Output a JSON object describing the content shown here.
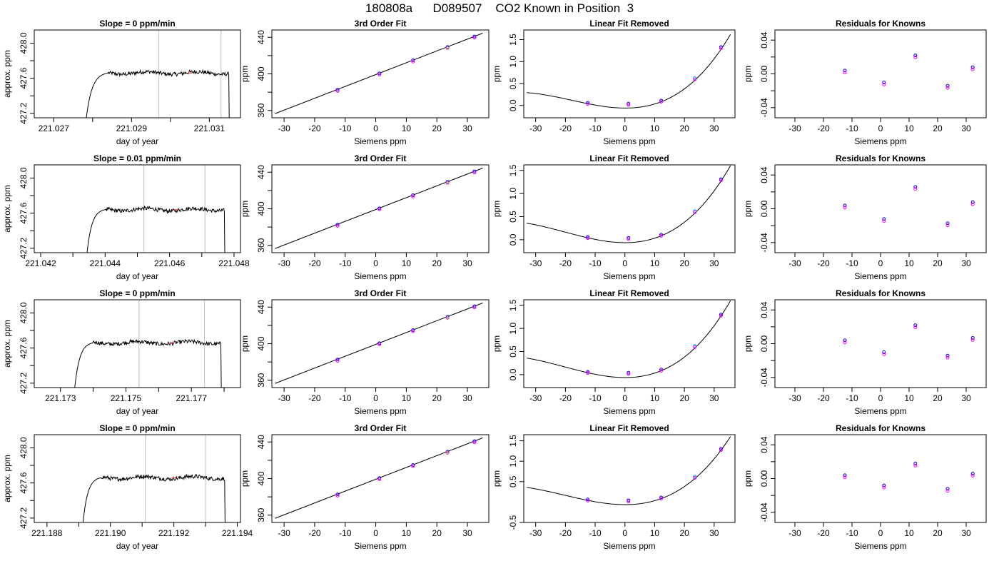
{
  "figure": {
    "title": "180808a      D089507    CO2 Known in Position  3"
  },
  "colors": {
    "axis": "#000000",
    "line": "#000000",
    "marker_a": "#0000ff",
    "marker_b": "#ff00ff",
    "marker_c": "#00aaff",
    "vline": "#c8c8c8",
    "warm_point": "#ff6666"
  },
  "chart_data": [
    {
      "type": "line",
      "title": "Slope =  0  ppm/min",
      "xlabel": "day of year",
      "ylabel": "approx. ppm",
      "xlim": [
        221.0265,
        221.0318
      ],
      "ylim": [
        427.15,
        428.15
      ],
      "xticks": [
        221.027,
        221.028,
        221.029,
        221.03,
        221.031
      ],
      "xtick_labels": [
        "221.027",
        "",
        "221.029",
        "",
        "221.031"
      ],
      "yticks": [
        427.2,
        427.4,
        427.6,
        427.8,
        428.0
      ],
      "ytick_labels": [
        "427.2",
        "",
        "427.6",
        "",
        "428.0"
      ],
      "vlines": [
        221.0297,
        221.0313
      ],
      "trace": {
        "start": 221.0278,
        "rise_end": 221.0284,
        "end": 221.0315,
        "base": 427.0,
        "plateau": 427.66
      },
      "highlight_x": 221.0305
    },
    {
      "type": "scatter",
      "title": "3rd Order Fit",
      "xlabel": "Siemens ppm",
      "ylabel": "ppm",
      "xlim": [
        -34,
        37
      ],
      "ylim": [
        352,
        448
      ],
      "xticks": [
        -30,
        -20,
        -10,
        0,
        10,
        20,
        30
      ],
      "xtick_labels": [
        "-30",
        "-20",
        "-10",
        "0",
        "10",
        "20",
        "30"
      ],
      "yticks": [
        360,
        380,
        400,
        420,
        440
      ],
      "ytick_labels": [
        "360",
        "",
        "400",
        "",
        "440"
      ],
      "line": {
        "x": [
          -33,
          35
        ],
        "y": [
          356.5,
          444.5
        ]
      },
      "points": {
        "x": [
          -12.5,
          1.2,
          12.2,
          23.5,
          32.3
        ],
        "y": [
          381.6,
          399.5,
          413.8,
          428.4,
          439.9
        ]
      }
    },
    {
      "type": "scatter",
      "title": "Linear Fit Removed",
      "xlabel": "Siemens ppm",
      "ylabel": "ppm",
      "xlim": [
        -34,
        37
      ],
      "ylim": [
        -0.28,
        1.72
      ],
      "xticks": [
        -30,
        -20,
        -10,
        0,
        10,
        20,
        30
      ],
      "xtick_labels": [
        "-30",
        "-20",
        "-10",
        "0",
        "10",
        "20",
        "30"
      ],
      "yticks": [
        0,
        0.5,
        1.0,
        1.5
      ],
      "ytick_labels": [
        "0.0",
        "0.5",
        "1.0",
        "1.5"
      ],
      "curve_ref": [
        -12.5,
        0.042,
        12.2,
        0.085,
        23.5,
        0.575,
        32.3,
        1.28
      ],
      "points": {
        "x": [
          -12.5,
          1.2,
          12.2,
          23.5,
          32.3
        ],
        "y": [
          0.04,
          0.02,
          0.09,
          0.6,
          1.31
        ]
      }
    },
    {
      "type": "scatter",
      "title": "Residuals for Knowns",
      "xlabel": "Siemens ppm",
      "ylabel": "ppm",
      "xlim": [
        -37,
        37
      ],
      "ylim": [
        -0.052,
        0.052
      ],
      "xticks": [
        -30,
        -20,
        -10,
        0,
        10,
        20,
        30
      ],
      "xtick_labels": [
        "-30",
        "-20",
        "-10",
        "0",
        "10",
        "20",
        "30"
      ],
      "yticks": [
        -0.04,
        -0.02,
        0,
        0.02,
        0.04
      ],
      "ytick_labels": [
        "-0.04",
        "",
        "0.00",
        "",
        "0.04"
      ],
      "points": {
        "x": [
          -12.5,
          1.2,
          12.2,
          23.5,
          32.3
        ],
        "y": [
          0.002,
          -0.012,
          0.02,
          -0.016,
          0.006
        ]
      }
    },
    {
      "type": "line",
      "title": "Slope =  0.01  ppm/min",
      "xlabel": "day of year",
      "ylabel": "approx. ppm",
      "xlim": [
        221.0418,
        221.0482
      ],
      "ylim": [
        427.15,
        428.15
      ],
      "xticks": [
        221.042,
        221.043,
        221.044,
        221.045,
        221.046,
        221.047,
        221.048
      ],
      "xtick_labels": [
        "221.042",
        "",
        "221.044",
        "",
        "221.046",
        "",
        "221.048"
      ],
      "yticks": [
        427.2,
        427.4,
        427.6,
        427.8,
        428.0
      ],
      "ytick_labels": [
        "427.2",
        "",
        "427.6",
        "",
        "428.0"
      ],
      "vlines": [
        221.0452,
        221.0471
      ],
      "trace": {
        "start": 221.0434,
        "rise_end": 221.044,
        "end": 221.0477,
        "base": 427.0,
        "plateau": 427.64
      },
      "highlight_x": 221.0462
    },
    {
      "type": "scatter",
      "title": "3rd Order Fit",
      "xlabel": "Siemens ppm",
      "ylabel": "ppm",
      "xlim": [
        -34,
        37
      ],
      "ylim": [
        352,
        448
      ],
      "xticks": [
        -30,
        -20,
        -10,
        0,
        10,
        20,
        30
      ],
      "xtick_labels": [
        "-30",
        "-20",
        "-10",
        "0",
        "10",
        "20",
        "30"
      ],
      "yticks": [
        360,
        380,
        400,
        420,
        440
      ],
      "ytick_labels": [
        "360",
        "",
        "400",
        "",
        "440"
      ],
      "line": {
        "x": [
          -33,
          35
        ],
        "y": [
          356.5,
          444.5
        ]
      },
      "points": {
        "x": [
          -12.5,
          1.2,
          12.2,
          23.5,
          32.3
        ],
        "y": [
          381.6,
          399.5,
          413.8,
          428.4,
          439.9
        ]
      }
    },
    {
      "type": "scatter",
      "title": "Linear Fit Removed",
      "xlabel": "Siemens ppm",
      "ylabel": "ppm",
      "xlim": [
        -34,
        37
      ],
      "ylim": [
        -0.28,
        1.62
      ],
      "xticks": [
        -30,
        -20,
        -10,
        0,
        10,
        20,
        30
      ],
      "xtick_labels": [
        "-30",
        "-20",
        "-10",
        "0",
        "10",
        "20",
        "30"
      ],
      "yticks": [
        0,
        0.5,
        1.0,
        1.5
      ],
      "ytick_labels": [
        "0.0",
        "0.5",
        "1.0",
        "1.5"
      ],
      "curve_ref": [
        -12.5,
        0.042,
        12.2,
        0.085,
        23.5,
        0.575,
        32.3,
        1.27
      ],
      "points": {
        "x": [
          -12.5,
          1.2,
          12.2,
          23.5,
          32.3
        ],
        "y": [
          0.04,
          0.02,
          0.09,
          0.6,
          1.29
        ]
      }
    },
    {
      "type": "scatter",
      "title": "Residuals for Knowns",
      "xlabel": "Siemens ppm",
      "ylabel": "ppm",
      "xlim": [
        -37,
        37
      ],
      "ylim": [
        -0.052,
        0.052
      ],
      "xticks": [
        -30,
        -20,
        -10,
        0,
        10,
        20,
        30
      ],
      "xtick_labels": [
        "-30",
        "-20",
        "-10",
        "0",
        "10",
        "20",
        "30"
      ],
      "yticks": [
        -0.04,
        -0.02,
        0,
        0.02,
        0.04
      ],
      "ytick_labels": [
        "-0.04",
        "",
        "0.00",
        "",
        "0.04"
      ],
      "points": {
        "x": [
          -12.5,
          1.2,
          12.2,
          23.5,
          32.3
        ],
        "y": [
          0.002,
          -0.014,
          0.024,
          -0.019,
          0.006
        ]
      }
    },
    {
      "type": "line",
      "title": "Slope =  0  ppm/min",
      "xlabel": "day of year",
      "ylabel": "approx. ppm",
      "xlim": [
        221.1722,
        221.1785
      ],
      "ylim": [
        427.15,
        428.15
      ],
      "xticks": [
        221.173,
        221.174,
        221.175,
        221.176,
        221.177,
        221.178
      ],
      "xtick_labels": [
        "221.173",
        "",
        "221.175",
        "",
        "221.177",
        ""
      ],
      "yticks": [
        427.2,
        427.4,
        427.6,
        427.8,
        428.0
      ],
      "ytick_labels": [
        "427.2",
        "",
        "427.6",
        "",
        "428.0"
      ],
      "vlines": [
        221.1754,
        221.1774
      ],
      "trace": {
        "start": 221.1734,
        "rise_end": 221.174,
        "end": 221.1779,
        "base": 427.0,
        "plateau": 427.66
      },
      "highlight_x": 221.1764
    },
    {
      "type": "scatter",
      "title": "3rd Order Fit",
      "xlabel": "Siemens ppm",
      "ylabel": "ppm",
      "xlim": [
        -34,
        37
      ],
      "ylim": [
        352,
        448
      ],
      "xticks": [
        -30,
        -20,
        -10,
        0,
        10,
        20,
        30
      ],
      "xtick_labels": [
        "-30",
        "-20",
        "-10",
        "0",
        "10",
        "20",
        "30"
      ],
      "yticks": [
        360,
        380,
        400,
        420,
        440
      ],
      "ytick_labels": [
        "360",
        "",
        "400",
        "",
        "440"
      ],
      "line": {
        "x": [
          -33,
          35
        ],
        "y": [
          356.5,
          444.5
        ]
      },
      "points": {
        "x": [
          -12.5,
          1.2,
          12.2,
          23.5,
          32.3
        ],
        "y": [
          381.6,
          399.5,
          413.8,
          428.4,
          439.9
        ]
      }
    },
    {
      "type": "scatter",
      "title": "Linear Fit Removed",
      "xlabel": "Siemens ppm",
      "ylabel": "ppm",
      "xlim": [
        -34,
        37
      ],
      "ylim": [
        -0.28,
        1.62
      ],
      "xticks": [
        -30,
        -20,
        -10,
        0,
        10,
        20,
        30
      ],
      "xtick_labels": [
        "-30",
        "-20",
        "-10",
        "0",
        "10",
        "20",
        "30"
      ],
      "yticks": [
        0,
        0.5,
        1.0,
        1.5
      ],
      "ytick_labels": [
        "0.0",
        "0.5",
        "1.0",
        "1.5"
      ],
      "curve_ref": [
        -12.5,
        0.042,
        12.2,
        0.085,
        23.5,
        0.575,
        32.3,
        1.27
      ],
      "points": {
        "x": [
          -12.5,
          1.2,
          12.2,
          23.5,
          32.3
        ],
        "y": [
          0.04,
          0.02,
          0.09,
          0.6,
          1.28
        ]
      }
    },
    {
      "type": "scatter",
      "title": "Residuals for Knowns",
      "xlabel": "Siemens ppm",
      "ylabel": "ppm",
      "xlim": [
        -37,
        37
      ],
      "ylim": [
        -0.052,
        0.052
      ],
      "xticks": [
        -30,
        -20,
        -10,
        0,
        10,
        20,
        30
      ],
      "xtick_labels": [
        "-30",
        "-20",
        "-10",
        "0",
        "10",
        "20",
        "30"
      ],
      "yticks": [
        -0.04,
        -0.02,
        0,
        0.02,
        0.04
      ],
      "ytick_labels": [
        "-0.04",
        "",
        "0.00",
        "",
        "0.04"
      ],
      "points": {
        "x": [
          -12.5,
          1.2,
          12.2,
          23.5,
          32.3
        ],
        "y": [
          0.002,
          -0.012,
          0.02,
          -0.016,
          0.005
        ]
      }
    },
    {
      "type": "line",
      "title": "Slope =  0  ppm/min",
      "xlabel": "day of year",
      "ylabel": "approx. ppm",
      "xlim": [
        221.1876,
        221.1941
      ],
      "ylim": [
        427.15,
        428.15
      ],
      "xticks": [
        221.188,
        221.189,
        221.19,
        221.191,
        221.192,
        221.193,
        221.194
      ],
      "xtick_labels": [
        "221.188",
        "",
        "221.190",
        "",
        "221.192",
        "",
        "221.194"
      ],
      "yticks": [
        427.2,
        427.4,
        427.6,
        427.8,
        428.0
      ],
      "ytick_labels": [
        "427.2",
        "",
        "427.6",
        "",
        "428.0"
      ],
      "vlines": [
        221.1911,
        221.193
      ],
      "trace": {
        "start": 221.1891,
        "rise_end": 221.1897,
        "end": 221.1936,
        "base": 427.0,
        "plateau": 427.66
      },
      "highlight_x": 221.192
    },
    {
      "type": "scatter",
      "title": "3rd Order Fit",
      "xlabel": "Siemens ppm",
      "ylabel": "ppm",
      "xlim": [
        -34,
        37
      ],
      "ylim": [
        352,
        448
      ],
      "xticks": [
        -30,
        -20,
        -10,
        0,
        10,
        20,
        30
      ],
      "xtick_labels": [
        "-30",
        "-20",
        "-10",
        "0",
        "10",
        "20",
        "30"
      ],
      "yticks": [
        360,
        380,
        400,
        420,
        440
      ],
      "ytick_labels": [
        "360",
        "",
        "400",
        "",
        "440"
      ],
      "line": {
        "x": [
          -33,
          35
        ],
        "y": [
          356.5,
          444.5
        ]
      },
      "points": {
        "x": [
          -12.5,
          1.2,
          12.2,
          23.5,
          32.3
        ],
        "y": [
          381.6,
          399.5,
          413.8,
          428.4,
          439.9
        ]
      }
    },
    {
      "type": "scatter",
      "title": "Linear Fit Removed",
      "xlabel": "Siemens ppm",
      "ylabel": "ppm",
      "xlim": [
        -34,
        37
      ],
      "ylim": [
        -0.5,
        1.65
      ],
      "xticks": [
        -30,
        -20,
        -10,
        0,
        10,
        20,
        30
      ],
      "xtick_labels": [
        "-30",
        "-20",
        "-10",
        "0",
        "10",
        "20",
        "30"
      ],
      "yticks": [
        -0.5,
        0.5,
        1.0,
        1.5
      ],
      "ytick_labels": [
        "-0.5",
        "0.5",
        "1.0",
        "1.5"
      ],
      "curve_ref": [
        -12.5,
        0.042,
        12.2,
        0.085,
        23.5,
        0.575,
        32.3,
        1.27
      ],
      "points": {
        "x": [
          -12.5,
          1.2,
          12.2,
          23.5,
          32.3
        ],
        "y": [
          0.04,
          0.02,
          0.09,
          0.6,
          1.28
        ]
      }
    },
    {
      "type": "scatter",
      "title": "Residuals for Knowns",
      "xlabel": "Siemens ppm",
      "ylabel": "ppm",
      "xlim": [
        -37,
        37
      ],
      "ylim": [
        -0.052,
        0.052
      ],
      "xticks": [
        -30,
        -20,
        -10,
        0,
        10,
        20,
        30
      ],
      "xtick_labels": [
        "-30",
        "-20",
        "-10",
        "0",
        "10",
        "20",
        "30"
      ],
      "yticks": [
        -0.04,
        -0.02,
        0,
        0.02,
        0.04
      ],
      "ytick_labels": [
        "-0.04",
        "",
        "0.00",
        "",
        "0.04"
      ],
      "points": {
        "x": [
          -12.5,
          1.2,
          12.2,
          23.5,
          32.3
        ],
        "y": [
          0.002,
          -0.01,
          0.016,
          -0.014,
          0.004
        ]
      }
    }
  ]
}
